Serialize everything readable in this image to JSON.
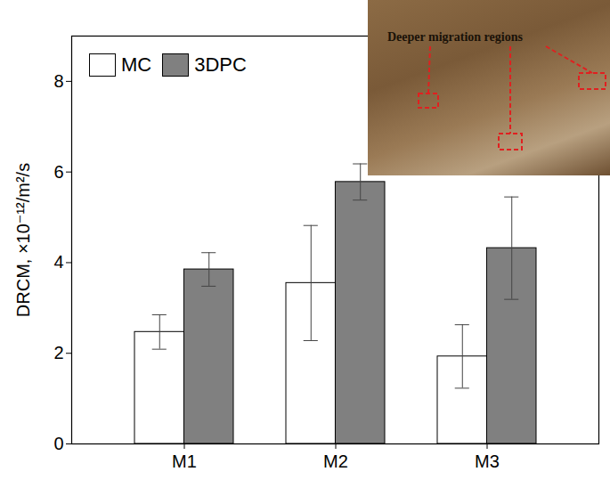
{
  "chart_data": {
    "type": "bar",
    "y_label": "DRCM, ×10⁻¹²/m²/s",
    "categories": [
      "M1",
      "M2",
      "M3"
    ],
    "series": [
      {
        "name": "MC",
        "color": "#ffffff",
        "values": [
          2.47,
          3.55,
          1.93
        ],
        "errors": [
          0.38,
          1.27,
          0.7
        ]
      },
      {
        "name": "3DPC",
        "color": "#808080",
        "values": [
          3.85,
          5.78,
          4.32
        ],
        "errors": [
          0.37,
          0.4,
          1.13
        ]
      }
    ],
    "ylim": [
      0,
      9
    ],
    "yticks": [
      0,
      2,
      4,
      6,
      8
    ],
    "grid": false,
    "legend": "top-left",
    "annotations": [
      "Deeper migration regions"
    ]
  }
}
